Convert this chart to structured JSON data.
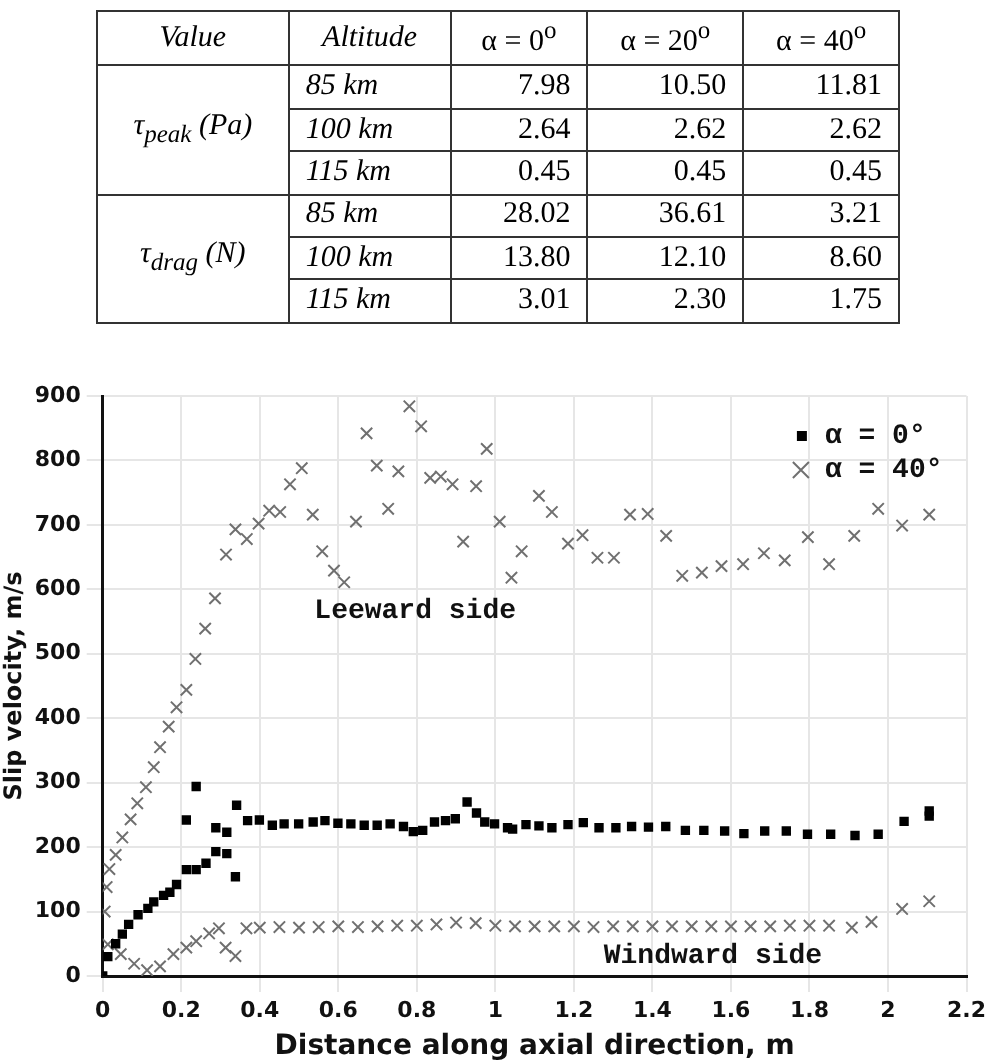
{
  "chart_data": [
    {
      "type": "heatmap",
      "categories": [
        "α = 0$^{o}$",
        "α = 20$^{o}$",
        "α = 40$^{o}$"
      ],
      "y_categories": [
        "85 km",
        "100 km",
        "115 km",
        "85 km",
        "100 km",
        "115 km"
      ],
      "cells": [
        [
          7.98,
          10.5,
          11.81
        ],
        [
          2.64,
          2.62,
          2.62
        ],
        [
          0.45,
          0.45,
          0.45
        ],
        [
          28.02,
          36.61,
          3.21
        ],
        [
          13.8,
          12.1,
          8.6
        ],
        [
          3.01,
          2.3,
          1.75
        ]
      ],
      "cell_labels": [
        [
          "7.98",
          "10.50",
          "11.81"
        ],
        [
          "2.64",
          "2.62",
          "2.62"
        ],
        [
          "0.45",
          "0.45",
          "0.45"
        ],
        [
          "28.02",
          "36.61",
          "3.21"
        ],
        [
          "13.80",
          "12.10",
          "8.60"
        ],
        [
          "3.01",
          "2.30",
          "1.75"
        ]
      ],
      "annotations": [
        "Value",
        "Altitude",
        "τ$_{peak}$ (Pa)",
        "τ$_{drag}$ (N)"
      ]
    },
    {
      "type": "scatter",
      "xlabel": "Distance along axial direction, m",
      "ylabel": "Slip velocity, m/s",
      "xlim": [
        0,
        2.2
      ],
      "ylim": [
        0,
        900
      ],
      "xticks": [
        0,
        0.2,
        0.4,
        0.6,
        0.8,
        1,
        1.2,
        1.4,
        1.6,
        1.8,
        2,
        {
          "value": 2.2,
          "label": "2.2"
        }
      ],
      "yticks": [
        0,
        100,
        200,
        300,
        400,
        500,
        600,
        700,
        800,
        900
      ],
      "grid": true,
      "legend": "top right",
      "annotations": [
        "Leeward side",
        "Windward side"
      ],
      "series": [
        {
          "name": "α = 0°",
          "color": "#000000",
          "marker": "square",
          "x": [
            0,
            0.013,
            0.033,
            0.05,
            0.066,
            0.09,
            0.115,
            0.13,
            0.155,
            0.171,
            0.188,
            0.213,
            0.238,
            0.263,
            0.288,
            0.316,
            0.338,
            0.213,
            0.238,
            0.288,
            0.316,
            0.341,
            0.369,
            0.399,
            0.432,
            0.462,
            0.499,
            0.536,
            0.566,
            0.599,
            0.632,
            0.666,
            0.699,
            0.732,
            0.766,
            0.791,
            0.815,
            0.845,
            0.873,
            0.898,
            0.928,
            0.952,
            0.973,
            0.998,
            1.031,
            1.044,
            1.078,
            1.111,
            1.144,
            1.185,
            1.224,
            1.264,
            1.307,
            1.347,
            1.39,
            1.434,
            1.484,
            1.531,
            1.584,
            1.633,
            1.686,
            1.741,
            1.795,
            1.854,
            1.916,
            1.975,
            2.041,
            2.105,
            2.105
          ],
          "values": [
            0,
            30,
            50,
            65,
            80,
            95,
            105,
            115,
            125,
            130,
            142,
            165,
            165,
            175,
            193,
            190,
            154,
            242,
            294,
            230,
            223,
            265,
            241,
            242,
            234,
            236,
            236,
            239,
            241,
            237,
            236,
            234,
            234,
            236,
            232,
            224,
            226,
            239,
            241,
            244,
            270,
            253,
            239,
            236,
            230,
            228,
            235,
            233,
            230,
            235,
            238,
            230,
            230,
            232,
            231,
            232,
            226,
            226,
            225,
            221,
            225,
            225,
            220,
            220,
            218,
            220,
            240,
            256,
            248
          ]
        },
        {
          "name": "α = 40°",
          "color": "#707070",
          "marker": "cross",
          "x": [
            0.005,
            0.01,
            0.017,
            0.033,
            0.05,
            0.071,
            0.088,
            0.11,
            0.13,
            0.146,
            0.168,
            0.188,
            0.213,
            0.236,
            0.261,
            0.286,
            0.314,
            0.338,
            0.367,
            0.397,
            0.424,
            0.452,
            0.477,
            0.507,
            0.535,
            0.559,
            0.589,
            0.615,
            0.645,
            0.672,
            0.698,
            0.727,
            0.753,
            0.781,
            0.811,
            0.834,
            0.861,
            0.891,
            0.918,
            0.951,
            0.978,
            1.011,
            1.041,
            1.067,
            1.111,
            1.144,
            1.185,
            1.222,
            1.26,
            1.302,
            1.343,
            1.388,
            1.435,
            1.476,
            1.526,
            1.576,
            1.631,
            1.684,
            1.737,
            1.796,
            1.85,
            1.914,
            1.975,
            2.036,
            2.105,
            0.013,
            0.046,
            0.08,
            0.113,
            0.146,
            0.18,
            0.213,
            0.238,
            0.271,
            0.296,
            0.313,
            0.338,
            0.366,
            0.4,
            0.45,
            0.5,
            0.55,
            0.6,
            0.65,
            0.7,
            0.75,
            0.8,
            0.85,
            0.9,
            0.95,
            1.0,
            1.05,
            1.1,
            1.15,
            1.2,
            1.25,
            1.3,
            1.35,
            1.4,
            1.45,
            1.5,
            1.55,
            1.6,
            1.65,
            1.7,
            1.75,
            1.8,
            1.85,
            1.908,
            1.958,
            2.036,
            2.105
          ],
          "values": [
            100,
            138,
            166,
            188,
            215,
            243,
            268,
            293,
            324,
            355,
            387,
            417,
            444,
            492,
            539,
            586,
            654,
            693,
            678,
            702,
            722,
            720,
            763,
            788,
            716,
            659,
            629,
            611,
            705,
            842,
            792,
            725,
            783,
            884,
            853,
            773,
            775,
            763,
            674,
            760,
            818,
            705,
            618,
            659,
            745,
            720,
            671,
            684,
            649,
            649,
            716,
            717,
            683,
            621,
            626,
            636,
            639,
            656,
            645,
            681,
            639,
            683,
            725,
            699,
            716,
            49,
            34,
            19,
            9,
            15,
            34,
            44,
            54,
            66,
            74,
            44,
            31,
            74,
            75,
            76,
            75,
            76,
            77,
            76,
            77,
            78,
            78,
            80,
            83,
            82,
            78,
            77,
            77,
            77,
            77,
            76,
            77,
            77,
            77,
            77,
            77,
            77,
            77,
            77,
            77,
            78,
            78,
            78,
            75,
            84,
            104,
            116
          ]
        }
      ]
    }
  ]
}
